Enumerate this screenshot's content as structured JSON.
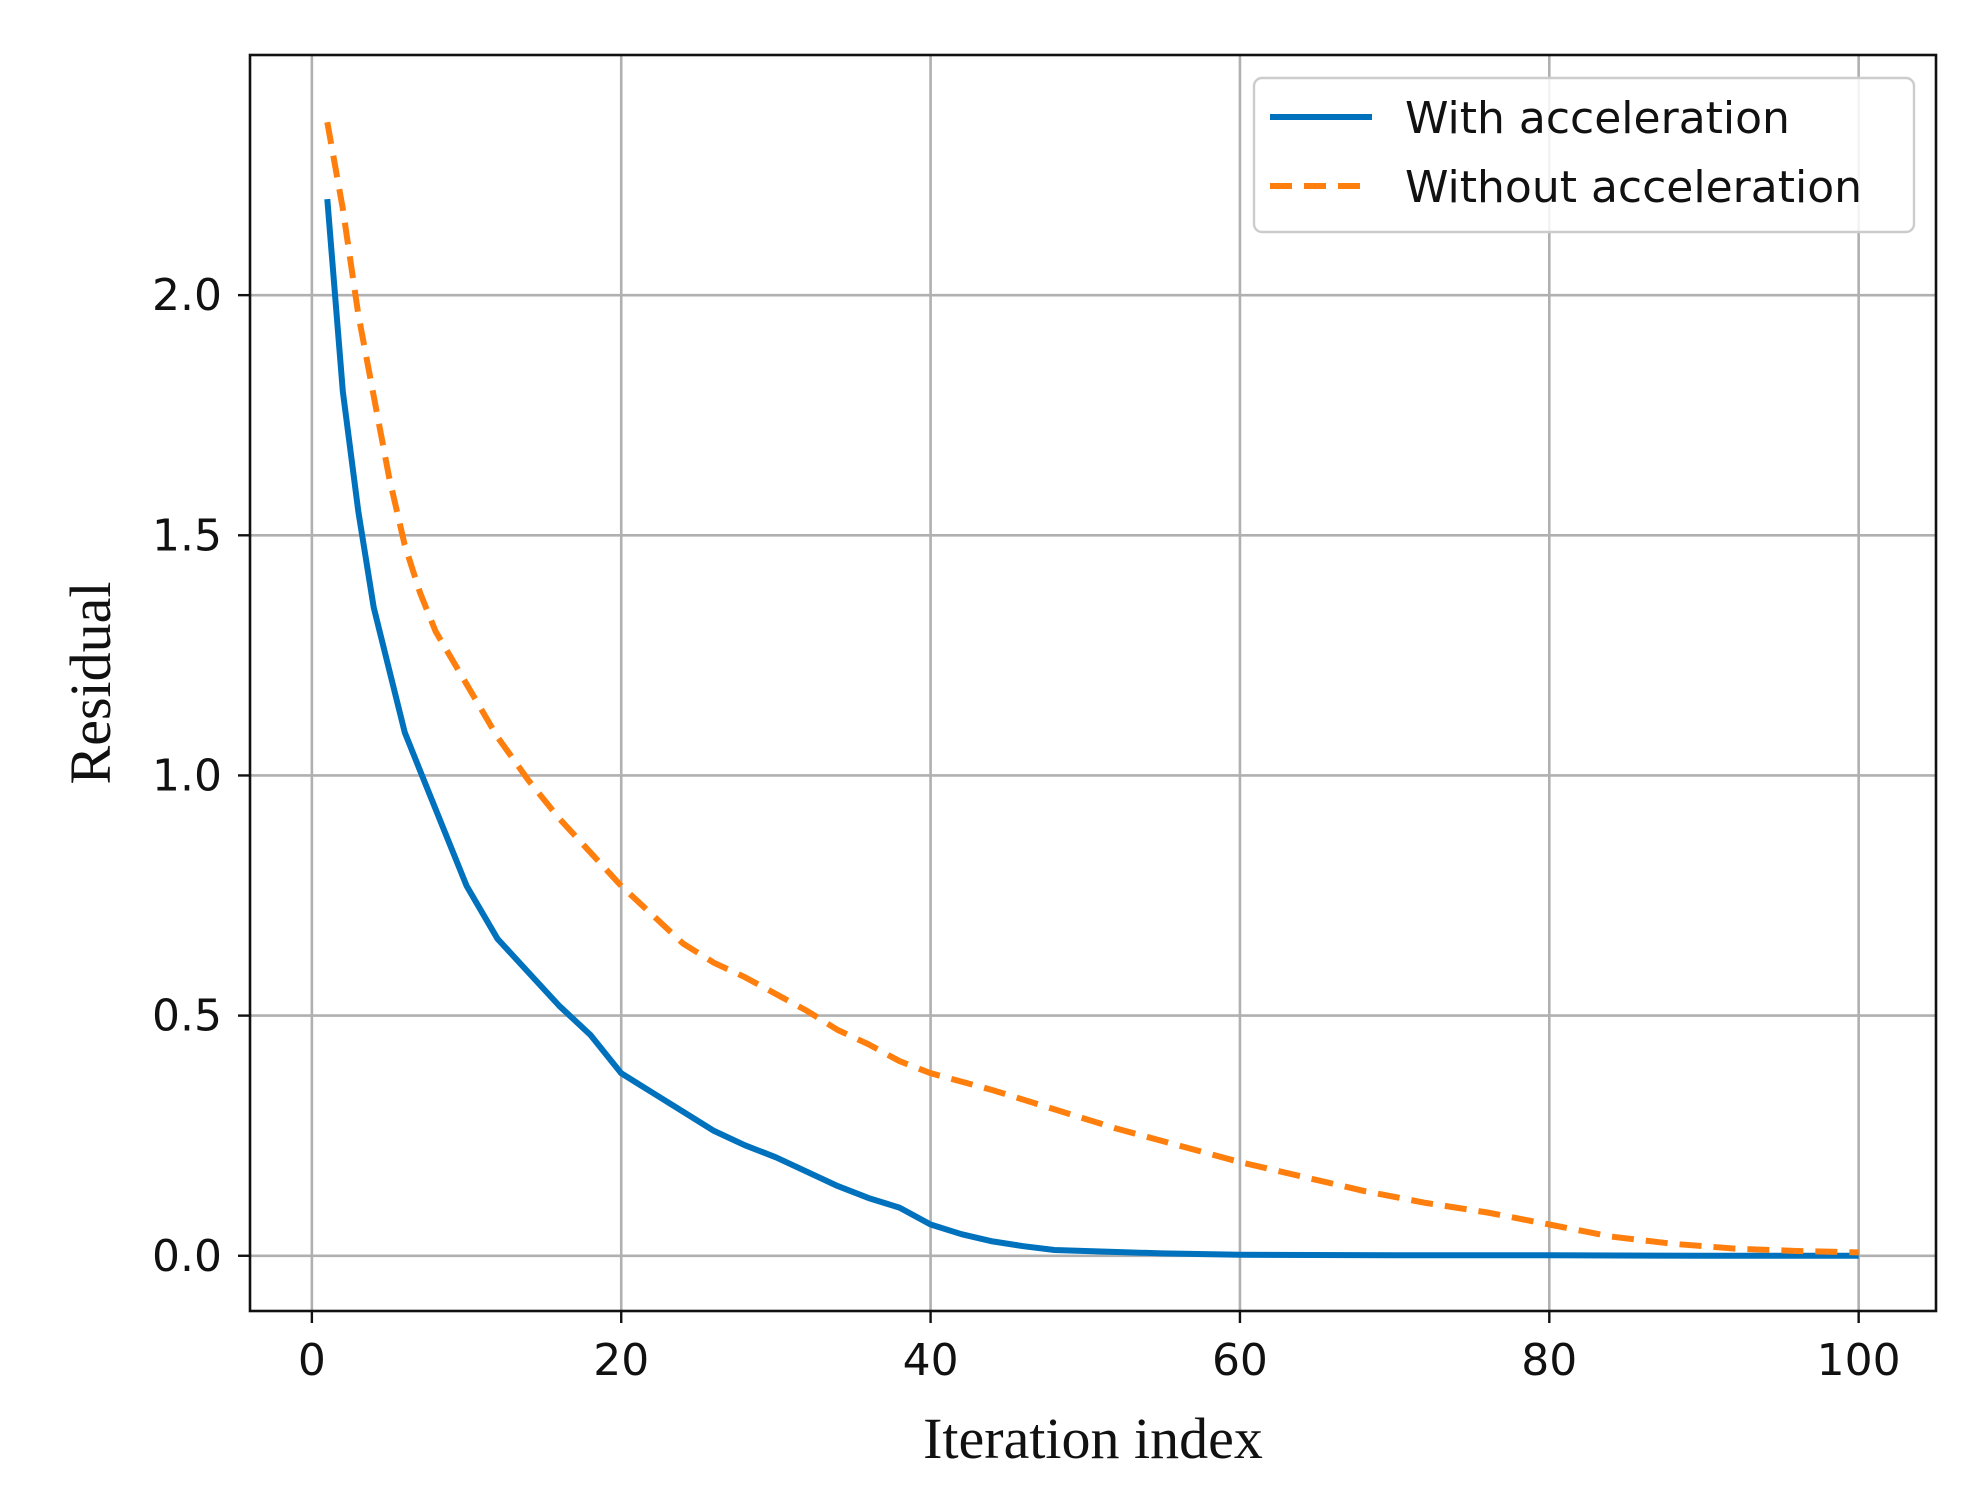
{
  "chart_data": {
    "type": "line",
    "title": "",
    "xlabel": "Iteration index",
    "ylabel": "Residual",
    "xlim": [
      -4,
      105
    ],
    "ylim": [
      -0.115,
      2.5
    ],
    "grid": true,
    "legend_position": "top-right",
    "x_ticks": [
      0,
      20,
      40,
      60,
      80,
      100
    ],
    "y_ticks": [
      0.0,
      0.5,
      1.0,
      1.5,
      2.0
    ],
    "x_tick_labels": [
      "0",
      "20",
      "40",
      "60",
      "80",
      "100"
    ],
    "y_tick_labels": [
      "0.0",
      "0.5",
      "1.0",
      "1.5",
      "2.0"
    ],
    "series": [
      {
        "name": "With acceleration",
        "color": "#0072bd",
        "style": "solid",
        "x": [
          1,
          2,
          3,
          4,
          5,
          6,
          7,
          8,
          9,
          10,
          12,
          14,
          16,
          18,
          20,
          22,
          24,
          26,
          28,
          30,
          32,
          34,
          36,
          38,
          40,
          42,
          44,
          46,
          48,
          50,
          55,
          60,
          70,
          80,
          90,
          100
        ],
        "y": [
          2.2,
          1.8,
          1.55,
          1.35,
          1.22,
          1.09,
          1.01,
          0.93,
          0.85,
          0.77,
          0.66,
          0.59,
          0.52,
          0.46,
          0.38,
          0.34,
          0.3,
          0.26,
          0.23,
          0.205,
          0.175,
          0.145,
          0.12,
          0.1,
          0.065,
          0.045,
          0.03,
          0.02,
          0.012,
          0.01,
          0.005,
          0.002,
          0.001,
          0.001,
          0.0,
          0.0
        ]
      },
      {
        "name": "Without acceleration",
        "color": "#ff7f0e",
        "style": "dashed",
        "x": [
          1,
          2,
          3,
          4,
          5,
          6,
          7,
          8,
          10,
          12,
          14,
          16,
          18,
          20,
          22,
          24,
          26,
          28,
          30,
          32,
          34,
          36,
          38,
          40,
          44,
          48,
          52,
          56,
          60,
          64,
          68,
          72,
          76,
          80,
          84,
          88,
          92,
          96,
          100
        ],
        "y": [
          2.36,
          2.18,
          1.96,
          1.79,
          1.62,
          1.48,
          1.38,
          1.3,
          1.19,
          1.08,
          0.99,
          0.91,
          0.84,
          0.77,
          0.71,
          0.65,
          0.61,
          0.58,
          0.545,
          0.51,
          0.47,
          0.44,
          0.405,
          0.38,
          0.345,
          0.305,
          0.265,
          0.23,
          0.195,
          0.165,
          0.135,
          0.11,
          0.09,
          0.065,
          0.04,
          0.025,
          0.015,
          0.01,
          0.007
        ]
      }
    ]
  }
}
